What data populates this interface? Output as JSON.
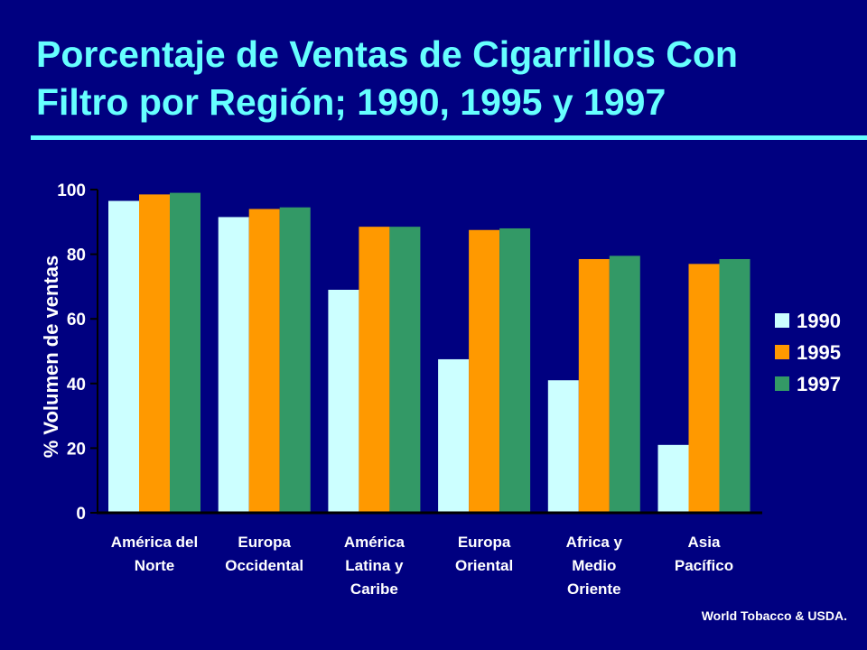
{
  "title": "Porcentaje de Ventas de Cigarrillos Con Filtro por Región; 1990, 1995 y 1997",
  "source": "World Tobacco & USDA.",
  "colors": {
    "background": "#000080",
    "title": "#66FFFF",
    "series_1990": "#CCFFFF",
    "series_1995": "#FF9900",
    "series_1997": "#339966",
    "text": "#FFFFFF",
    "axis": "#000000"
  },
  "chart_data": {
    "type": "bar",
    "title": "Porcentaje de Ventas de Cigarrillos Con Filtro por Región; 1990, 1995 y 1997",
    "xlabel": "",
    "ylabel": "% Volumen de ventas",
    "ylim": [
      0,
      100
    ],
    "yticks": [
      0,
      20,
      40,
      60,
      80,
      100
    ],
    "ytick_labels": [
      "0",
      "20",
      "40",
      "60",
      "80",
      "100"
    ],
    "grid": false,
    "legend_position": "right",
    "categories": [
      "América del Norte",
      "Europa Occidental",
      "América Latina y Caribe",
      "Europa Oriental",
      "Africa y Medio Oriente",
      "Asia Pacífico"
    ],
    "category_lines": [
      [
        "América del",
        "Norte"
      ],
      [
        "Europa",
        "Occidental"
      ],
      [
        "América",
        "Latina y",
        "Caribe"
      ],
      [
        "Europa",
        "Oriental"
      ],
      [
        "Africa y",
        "Medio",
        "Oriente"
      ],
      [
        "Asia",
        "Pacífico"
      ]
    ],
    "series": [
      {
        "name": "1990",
        "color": "#CCFFFF",
        "values": [
          96.5,
          91.5,
          69,
          47.5,
          41,
          21
        ]
      },
      {
        "name": "1995",
        "color": "#FF9900",
        "values": [
          98.5,
          94,
          88.5,
          87.5,
          78.5,
          77
        ]
      },
      {
        "name": "1997",
        "color": "#339966",
        "values": [
          99,
          94.5,
          88.5,
          88,
          79.5,
          78.5
        ]
      }
    ]
  }
}
